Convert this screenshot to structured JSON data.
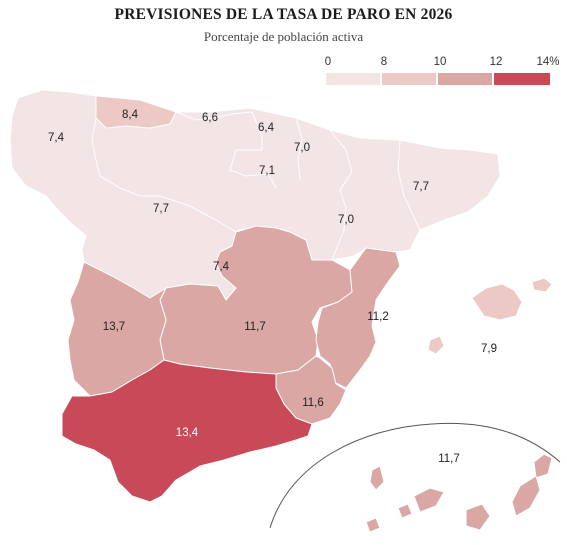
{
  "title": "PREVISIONES DE LA TASA DE PARO EN 2026",
  "subtitle": "Porcentaje de población activa",
  "legend": {
    "ticks": [
      "0",
      "8",
      "10",
      "12",
      "14%"
    ],
    "colors": [
      "#f3e4e6",
      "#ecc9c4",
      "#dba7a4",
      "#c84a58"
    ]
  },
  "regions": {
    "galicia": "7,4",
    "asturias": "8,4",
    "cantabria": "6,6",
    "pais_vasco": "6,4",
    "navarra": "7,0",
    "la_rioja": "7,1",
    "cataluna": "7,7",
    "castilla_leon": "7,7",
    "aragon": "7,0",
    "madrid": "7,4",
    "extremadura": "13,7",
    "castilla_la_mancha": "11,7",
    "valencia": "11,2",
    "baleares": "7,9",
    "murcia": "11,6",
    "andalucia": "13,4",
    "canarias": "11,7"
  }
}
